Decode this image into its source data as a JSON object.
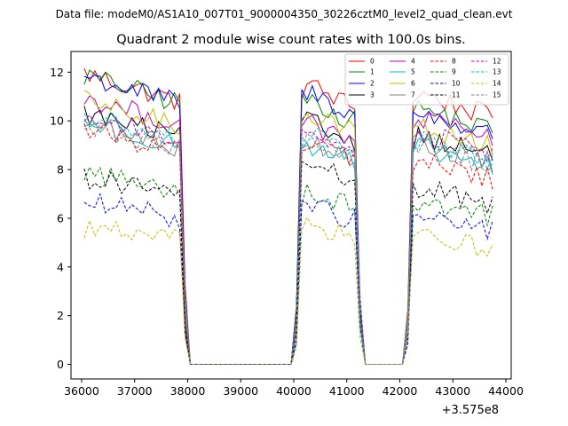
{
  "chart_data": {
    "type": "line",
    "suptitle": "Data file: modeM0/AS1A10_007T01_9000004350_30226cztM0_level2_quad_clean.evt",
    "title": "Quadrant 2 module wise count rates with 100.0s bins.",
    "xlabel": "",
    "ylabel": "",
    "x_offset_label": "+3.575e8",
    "xlim": [
      35800,
      44100
    ],
    "ylim": [
      -0.6,
      12.85
    ],
    "xticks": [
      36000,
      37000,
      38000,
      39000,
      40000,
      41000,
      42000,
      43000,
      44000
    ],
    "xtick_labels": [
      "36000",
      "37000",
      "38000",
      "39000",
      "40000",
      "41000",
      "42000",
      "43000",
      "44000"
    ],
    "yticks": [
      0,
      2,
      4,
      6,
      8,
      10,
      12
    ],
    "ytick_labels": [
      "0",
      "2",
      "4",
      "6",
      "8",
      "10",
      "12"
    ],
    "legend_position": "top-right",
    "segments": [
      {
        "start": 36050,
        "end": 37850
      },
      {
        "start": 40150,
        "end": 41150
      },
      {
        "start": 42250,
        "end": 43750
      }
    ],
    "bin_step": 100,
    "series": [
      {
        "name": "0",
        "color": "#ff0000",
        "dash": "solid",
        "levels": [
          11.5,
          11.2,
          10.8
        ]
      },
      {
        "name": "1",
        "color": "#008000",
        "dash": "solid",
        "levels": [
          11.4,
          10.6,
          10.2
        ]
      },
      {
        "name": "2",
        "color": "#0000ff",
        "dash": "solid",
        "levels": [
          11.4,
          10.9,
          10.0
        ]
      },
      {
        "name": "3",
        "color": "#000000",
        "dash": "solid",
        "levels": [
          9.9,
          9.7,
          9.1
        ]
      },
      {
        "name": "4",
        "color": "#bf00bf",
        "dash": "solid",
        "levels": [
          10.5,
          9.6,
          9.8
        ]
      },
      {
        "name": "5",
        "color": "#00bfbf",
        "dash": "solid",
        "levels": [
          9.6,
          8.8,
          8.6
        ]
      },
      {
        "name": "6",
        "color": "#bfbf00",
        "dash": "solid",
        "levels": [
          10.4,
          10.1,
          9.5
        ]
      },
      {
        "name": "7",
        "color": "#808080",
        "dash": "solid",
        "levels": [
          9.5,
          9.0,
          8.8
        ]
      },
      {
        "name": "8",
        "color": "#ff0000",
        "dash": "dashed",
        "levels": [
          9.3,
          9.0,
          8.1
        ]
      },
      {
        "name": "9",
        "color": "#008000",
        "dash": "dashed",
        "levels": [
          7.6,
          6.9,
          6.5
        ]
      },
      {
        "name": "10",
        "color": "#0000ff",
        "dash": "dashed",
        "levels": [
          6.4,
          6.3,
          5.9
        ]
      },
      {
        "name": "11",
        "color": "#000000",
        "dash": "dashed",
        "levels": [
          7.4,
          8.0,
          7.0
        ]
      },
      {
        "name": "12",
        "color": "#bf00bf",
        "dash": "dashed",
        "levels": [
          9.8,
          9.4,
          9.2
        ]
      },
      {
        "name": "13",
        "color": "#00bfbf",
        "dash": "dashed",
        "levels": [
          9.8,
          9.2,
          8.9
        ]
      },
      {
        "name": "14",
        "color": "#bfbf00",
        "dash": "dashed",
        "levels": [
          5.4,
          5.5,
          5.1
        ]
      },
      {
        "name": "15",
        "color": "#808080",
        "dash": "dashed",
        "levels": [
          9.4,
          9.0,
          8.7
        ]
      }
    ]
  }
}
